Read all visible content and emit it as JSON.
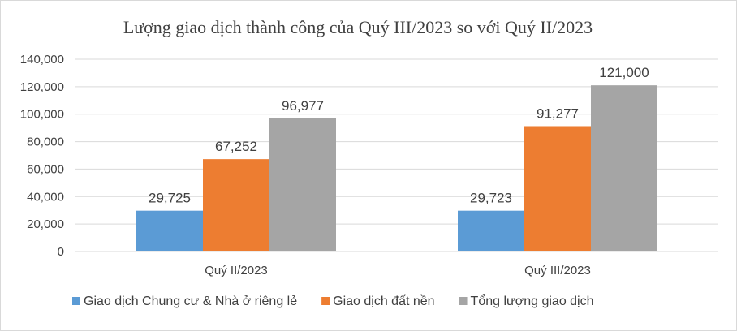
{
  "chart_data": {
    "type": "bar",
    "title": "Lượng giao dịch thành công của Quý III/2023  so với Quý II/2023",
    "categories": [
      "Quý II/2023",
      "Quý III/2023"
    ],
    "series": [
      {
        "name": "Giao dịch Chung cư & Nhà ở riêng lẻ",
        "values": [
          29725,
          29723
        ],
        "labels": [
          "29,725",
          "29,723"
        ],
        "color": "#5b9bd5"
      },
      {
        "name": "Giao dịch đất nền",
        "values": [
          67252,
          91277
        ],
        "labels": [
          "67,252",
          "91,277"
        ],
        "color": "#ed7d31"
      },
      {
        "name": "Tổng lượng giao dịch",
        "values": [
          96977,
          121000
        ],
        "labels": [
          "96,977",
          "121,000"
        ],
        "color": "#a5a5a5"
      }
    ],
    "ylim": [
      0,
      140000
    ],
    "yticks": [
      0,
      20000,
      40000,
      60000,
      80000,
      100000,
      120000,
      140000
    ],
    "ytick_labels": [
      "0",
      "20,000",
      "40,000",
      "60,000",
      "80,000",
      "100,000",
      "120,000",
      "140,000"
    ],
    "grid": true,
    "legend_position": "bottom",
    "xlabel": "",
    "ylabel": ""
  }
}
